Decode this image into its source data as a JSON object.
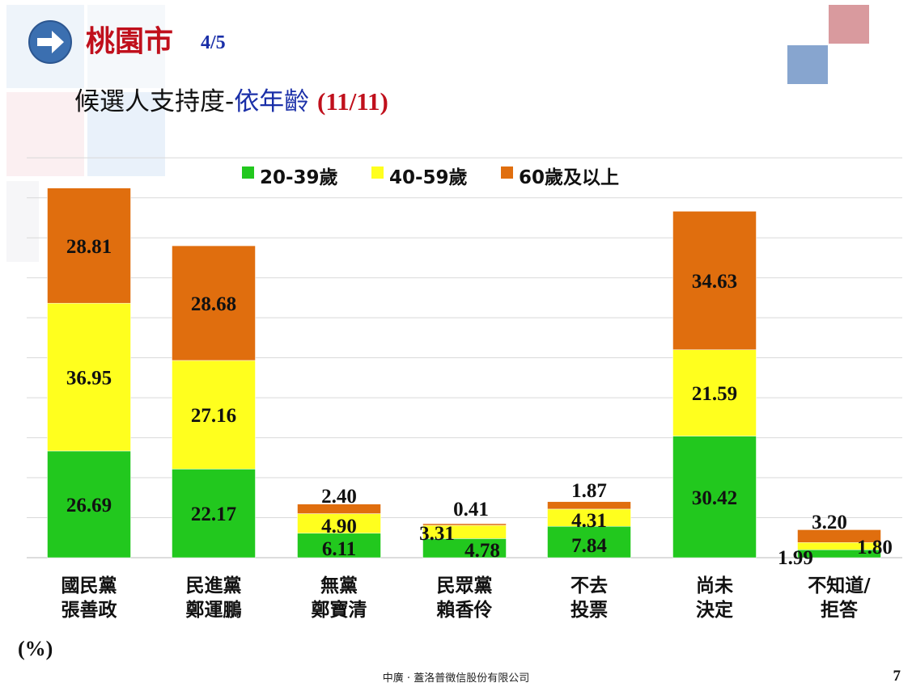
{
  "header": {
    "title": "桃園市",
    "page_indicator": "4/5",
    "subtitle_prefix": "候選人支持度-",
    "subtitle_highlight": "依年齡",
    "subtitle_date": "(11/11)",
    "nav_icon": "arrow-right-icon"
  },
  "colors": {
    "age_20_39": "#22c81e",
    "age_40_59": "#ffff1e",
    "age_60_plus": "#e06e0e",
    "title_red": "#c0101c",
    "title_blue": "#1a2fa8"
  },
  "chart_data": {
    "type": "bar",
    "stacked": true,
    "categories": [
      [
        "國民黨",
        "張善政"
      ],
      [
        "民進黨",
        "鄭運鵬"
      ],
      [
        "無黨",
        "鄭寶清"
      ],
      [
        "民眾黨",
        "賴香伶"
      ],
      [
        "不去",
        "投票"
      ],
      [
        "尚未",
        "決定"
      ],
      [
        "不知道/",
        "拒答"
      ]
    ],
    "series": [
      {
        "name": "20-39歲",
        "values": [
          26.69,
          22.17,
          6.11,
          4.78,
          7.84,
          30.42,
          1.99
        ]
      },
      {
        "name": "40-59歲",
        "values": [
          36.95,
          27.16,
          4.9,
          3.31,
          4.31,
          21.59,
          1.8
        ]
      },
      {
        "name": "60歲及以上",
        "values": [
          28.81,
          28.68,
          2.4,
          0.41,
          1.87,
          34.63,
          3.2
        ]
      }
    ],
    "value_labels": [
      [
        "26.69",
        "22.17",
        "6.11",
        "4.78",
        "7.84",
        "30.42",
        "1.99"
      ],
      [
        "36.95",
        "27.16",
        "4.90",
        "3.31",
        "4.31",
        "21.59",
        "1.80"
      ],
      [
        "28.81",
        "28.68",
        "2.40",
        "0.41",
        "1.87",
        "34.63",
        "3.20"
      ]
    ],
    "ylim": [
      0,
      100
    ],
    "grid": true,
    "legend_position": "top-center",
    "unit_label": "(%)"
  },
  "footer": {
    "company": "中廣 · 蓋洛普徵信股份有限公司",
    "page_number": "7"
  }
}
